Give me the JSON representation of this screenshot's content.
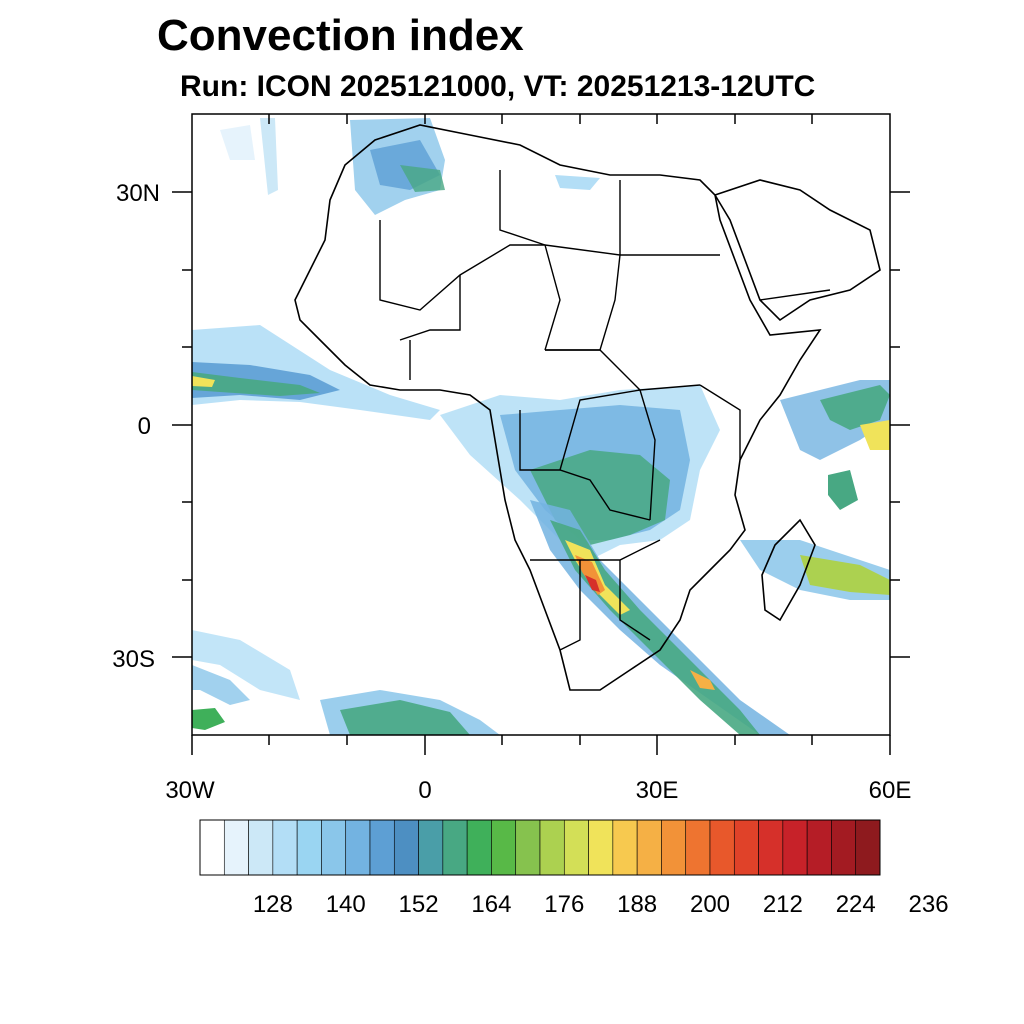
{
  "map": {
    "title": "Convection index",
    "subtitle": "Run: ICON 2025121000,  VT: 20251213-12UTC",
    "lat_labels": [
      "30N",
      "0",
      "30S"
    ],
    "lon_labels": [
      "30W",
      "0",
      "30E",
      "60E"
    ],
    "lon_range": [
      -30,
      60
    ],
    "lat_range": [
      -40,
      40
    ]
  },
  "colorbar": {
    "colors": [
      "#ffffff",
      "#e6f3fc",
      "#cce8f7",
      "#b3def6",
      "#9ad5f2",
      "#8ac6ea",
      "#73b3e1",
      "#5d9fd4",
      "#4d8fc2",
      "#4a9ea8",
      "#48a883",
      "#3fb05a",
      "#58b947",
      "#86c24e",
      "#acd150",
      "#d3df57",
      "#f0e35a",
      "#f7c94f",
      "#f5b045",
      "#f29238",
      "#ee7430",
      "#e8582b",
      "#e04229",
      "#d6302a",
      "#c72229",
      "#b51d26",
      "#a31b22",
      "#8e1a1e"
    ],
    "tick_labels": [
      "128",
      "140",
      "152",
      "164",
      "176",
      "188",
      "200",
      "212",
      "224",
      "236"
    ]
  }
}
